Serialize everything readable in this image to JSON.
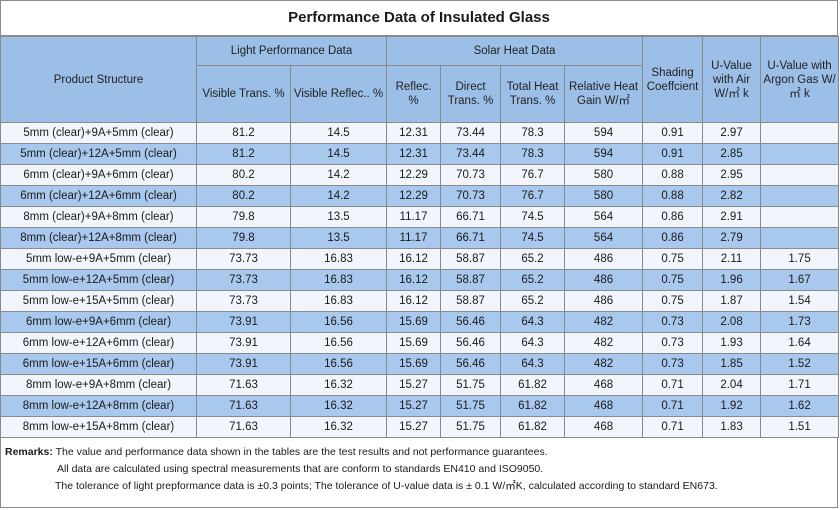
{
  "title": "Performance Data of Insulated Glass",
  "headers": {
    "product_structure": "Product Structure",
    "light_group": "Light Performance Data",
    "solar_group": "Solar Heat Data",
    "shading": "Shading Coeffcient",
    "u_air": "U-Value with Air W/㎡ k",
    "u_argon": "U-Value with Argon Gas W/㎡ k",
    "visible_trans": "Visible Trans. %",
    "visible_reflec": "Visible Reflec.. %",
    "reflec": "Reflec. %",
    "direct_trans": "Direct Trans. %",
    "total_heat": "Total Heat Trans. %",
    "relative_heat": "Relative Heat Gain W/㎡"
  },
  "rows": [
    [
      "5mm (clear)+9A+5mm (clear)",
      "81.2",
      "14.5",
      "12.31",
      "73.44",
      "78.3",
      "594",
      "0.91",
      "2.97",
      ""
    ],
    [
      "5mm (clear)+12A+5mm (clear)",
      "81.2",
      "14.5",
      "12.31",
      "73.44",
      "78.3",
      "594",
      "0.91",
      "2.85",
      ""
    ],
    [
      "6mm (clear)+9A+6mm (clear)",
      "80.2",
      "14.2",
      "12.29",
      "70.73",
      "76.7",
      "580",
      "0.88",
      "2.95",
      ""
    ],
    [
      "6mm (clear)+12A+6mm (clear)",
      "80.2",
      "14.2",
      "12.29",
      "70.73",
      "76.7",
      "580",
      "0.88",
      "2.82",
      ""
    ],
    [
      "8mm (clear)+9A+8mm (clear)",
      "79.8",
      "13.5",
      "11.17",
      "66.71",
      "74.5",
      "564",
      "0.86",
      "2.91",
      ""
    ],
    [
      "8mm (clear)+12A+8mm (clear)",
      "79.8",
      "13.5",
      "11.17",
      "66.71",
      "74.5",
      "564",
      "0.86",
      "2.79",
      ""
    ],
    [
      "5mm low-e+9A+5mm (clear)",
      "73.73",
      "16.83",
      "16.12",
      "58.87",
      "65.2",
      "486",
      "0.75",
      "2.11",
      "1.75"
    ],
    [
      "5mm low-e+12A+5mm (clear)",
      "73.73",
      "16.83",
      "16.12",
      "58.87",
      "65.2",
      "486",
      "0.75",
      "1.96",
      "1.67"
    ],
    [
      "5mm low-e+15A+5mm (clear)",
      "73.73",
      "16.83",
      "16.12",
      "58.87",
      "65.2",
      "486",
      "0.75",
      "1.87",
      "1.54"
    ],
    [
      "6mm low-e+9A+6mm (clear)",
      "73.91",
      "16.56",
      "15.69",
      "56.46",
      "64.3",
      "482",
      "0.73",
      "2.08",
      "1.73"
    ],
    [
      "6mm low-e+12A+6mm (clear)",
      "73.91",
      "16.56",
      "15.69",
      "56.46",
      "64.3",
      "482",
      "0.73",
      "1.93",
      "1.64"
    ],
    [
      "6mm low-e+15A+6mm (clear)",
      "73.91",
      "16.56",
      "15.69",
      "56.46",
      "64.3",
      "482",
      "0.73",
      "1.85",
      "1.52"
    ],
    [
      "8mm low-e+9A+8mm (clear)",
      "71.63",
      "16.32",
      "15.27",
      "51.75",
      "61.82",
      "468",
      "0.71",
      "2.04",
      "1.71"
    ],
    [
      "8mm low-e+12A+8mm (clear)",
      "71.63",
      "16.32",
      "15.27",
      "51.75",
      "61.82",
      "468",
      "0.71",
      "1.92",
      "1.62"
    ],
    [
      "8mm low-e+15A+8mm (clear)",
      "71.63",
      "16.32",
      "15.27",
      "51.75",
      "61.82",
      "468",
      "0.71",
      "1.83",
      "1.51"
    ]
  ],
  "remarks": {
    "label": "Remarks:",
    "line1": "The value and performance data shown in the tables are the test results and not performance guarantees.",
    "line2": "All data are calculated using spectral measurements that are conform to standards EN410 and ISO9050.",
    "line3": "The tolerance of light prepformance data is ±0.3 points;  The tolerance of U-value data is ± 0.1 W/㎡K, calculated according to standard EN673."
  }
}
